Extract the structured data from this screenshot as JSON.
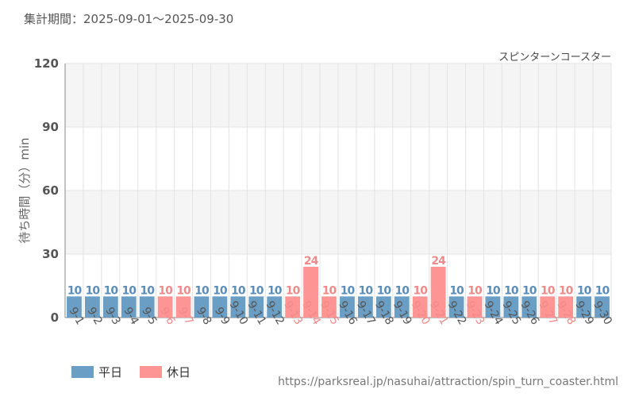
{
  "header": {
    "period": "集計期間：2025-09-01～2025-09-30"
  },
  "chart_data": {
    "type": "bar",
    "title": "スピンターンコースター",
    "ylabel": "待ち時間（分）min",
    "xlabel": "",
    "ylim": [
      0,
      120
    ],
    "yticks": [
      0,
      30,
      60,
      90,
      120
    ],
    "categories": [
      "9-1",
      "9-2",
      "9-3",
      "9-4",
      "9-5",
      "9-6",
      "9-7",
      "9-8",
      "9-9",
      "9-10",
      "9-11",
      "9-12",
      "9-13",
      "9-14",
      "9-15",
      "9-16",
      "9-17",
      "9-18",
      "9-19",
      "9-20",
      "9-21",
      "9-22",
      "9-23",
      "9-24",
      "9-25",
      "9-26",
      "9-27",
      "9-28",
      "9-29",
      "9-30"
    ],
    "values": [
      10,
      10,
      10,
      10,
      10,
      10,
      10,
      10,
      10,
      10,
      10,
      10,
      10,
      24,
      10,
      10,
      10,
      10,
      10,
      10,
      24,
      10,
      10,
      10,
      10,
      10,
      10,
      10,
      10,
      10
    ],
    "day_type": [
      "weekday",
      "weekday",
      "weekday",
      "weekday",
      "weekday",
      "holiday",
      "holiday",
      "weekday",
      "weekday",
      "weekday",
      "weekday",
      "weekday",
      "holiday",
      "holiday",
      "holiday",
      "weekday",
      "weekday",
      "weekday",
      "weekday",
      "holiday",
      "holiday",
      "weekday",
      "holiday",
      "weekday",
      "weekday",
      "weekday",
      "holiday",
      "holiday",
      "weekday",
      "weekday"
    ],
    "legend": [
      {
        "key": "weekday",
        "label": "平日"
      },
      {
        "key": "holiday",
        "label": "休日"
      }
    ]
  },
  "colors": {
    "weekday": "#6a9ec5",
    "holiday": "#fd9595",
    "weekday_text": "#5b8db8",
    "holiday_text": "#f08a8a",
    "tick_text": "#555555",
    "grid": "#e3e3e3",
    "band": "#f5f5f5"
  },
  "footer": {
    "source": "https://parksreal.jp/nasuhai/attraction/spin_turn_coaster.html"
  }
}
